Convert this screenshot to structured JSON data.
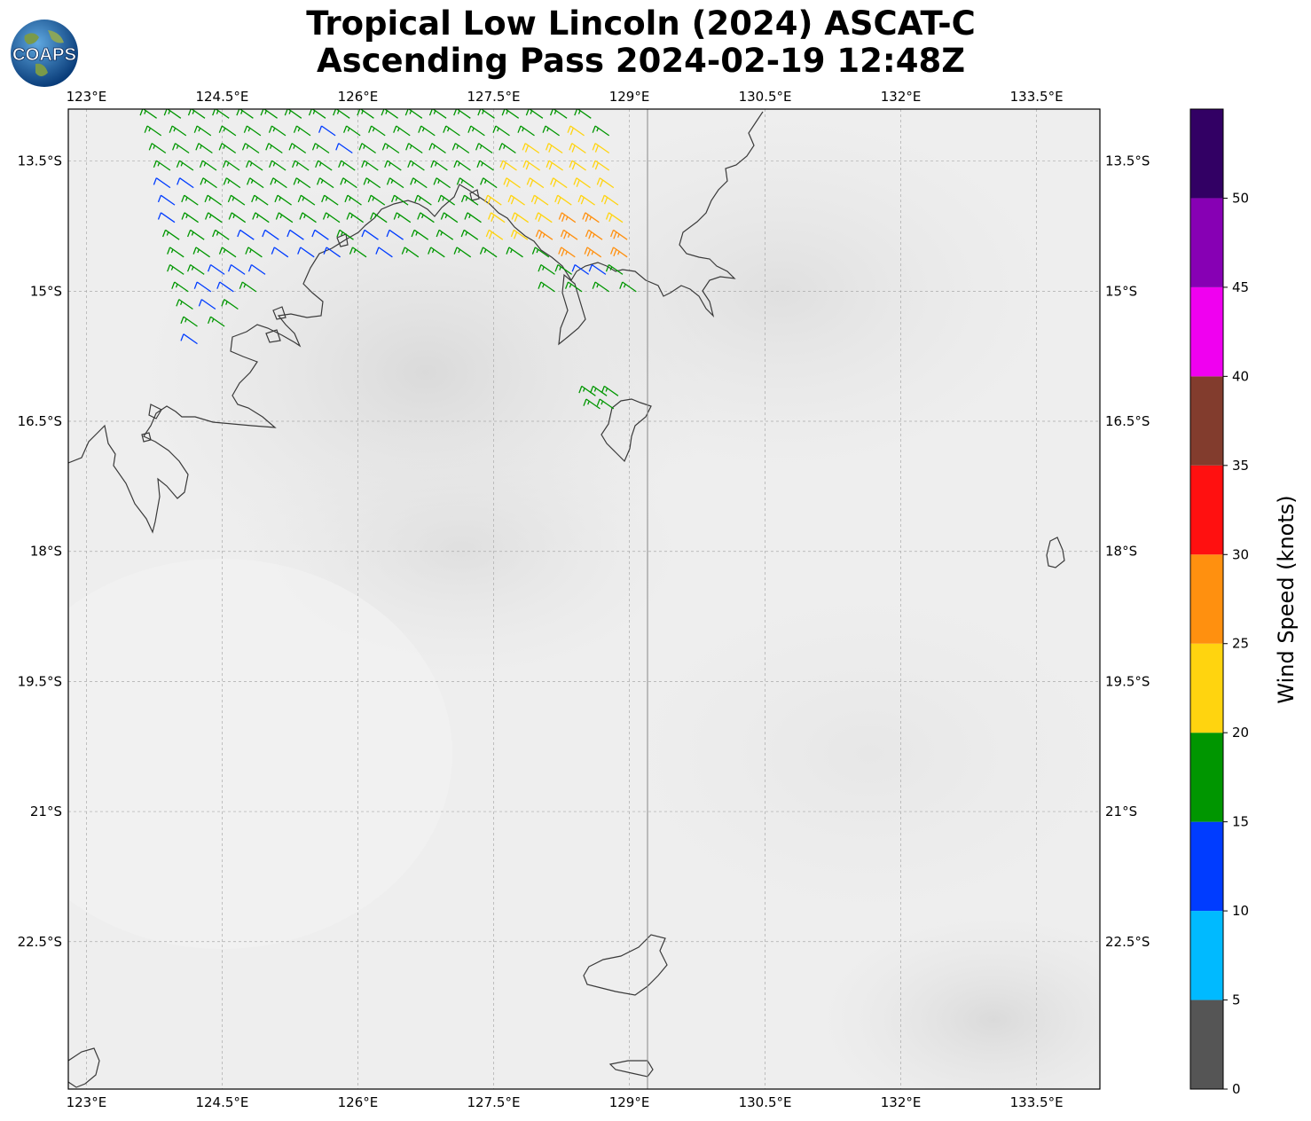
{
  "title": {
    "line1": "Tropical Low Lincoln (2024) ASCAT-C",
    "line2": "Ascending Pass 2024-02-19 12:48Z"
  },
  "logo": {
    "text": "COAPS",
    "icon": "earth-globe-icon"
  },
  "map": {
    "lon_range": [
      122.8,
      134.2
    ],
    "lat_range": [
      -24.2,
      -12.9
    ],
    "lon_ticks": [
      "123°E",
      "124.5°E",
      "126°E",
      "127.5°E",
      "129°E",
      "130.5°E",
      "132°E",
      "133.5°E"
    ],
    "lon_tick_values": [
      123,
      124.5,
      126,
      127.5,
      129,
      130.5,
      132,
      133.5
    ],
    "lat_ticks": [
      "13.5°S",
      "15°S",
      "16.5°S",
      "18°S",
      "19.5°S",
      "21°S",
      "22.5°S"
    ],
    "lat_tick_values": [
      -13.5,
      -15,
      -16.5,
      -18,
      -19.5,
      -21,
      -22.5
    ],
    "gridlines": true,
    "background": "grayscale infrared imagery",
    "coastline_color": "#333333"
  },
  "colorbar": {
    "label": "Wind Speed (knots)",
    "ticks": [
      "0",
      "5",
      "10",
      "15",
      "20",
      "25",
      "30",
      "35",
      "40",
      "45",
      "50"
    ],
    "bins": [
      {
        "from": 0,
        "to": 5,
        "color": "#555555"
      },
      {
        "from": 5,
        "to": 10,
        "color": "#00baff"
      },
      {
        "from": 10,
        "to": 15,
        "color": "#003cff"
      },
      {
        "from": 15,
        "to": 20,
        "color": "#009600"
      },
      {
        "from": 20,
        "to": 25,
        "color": "#ffd40f"
      },
      {
        "from": 25,
        "to": 30,
        "color": "#ff900f"
      },
      {
        "from": 30,
        "to": 35,
        "color": "#ff1010"
      },
      {
        "from": 35,
        "to": 40,
        "color": "#823c2d"
      },
      {
        "from": 40,
        "to": 45,
        "color": "#f000f0"
      },
      {
        "from": 45,
        "to": 50,
        "color": "#8700b4"
      },
      {
        "from": 50,
        "to": 55,
        "color": "#320064"
      }
    ]
  },
  "wind_barbs": {
    "direction_deg": 125,
    "rows": [
      {
        "lat": -12.95,
        "lon_start": 123.7,
        "lon_end": 128.5,
        "speeds": [
          17,
          17,
          17,
          17,
          17,
          17,
          17,
          17,
          17,
          17,
          17,
          17,
          17,
          17,
          17,
          17,
          17,
          17,
          17
        ]
      },
      {
        "lat": -13.15,
        "lon_start": 123.75,
        "lon_end": 128.7,
        "speeds": [
          17,
          17,
          17,
          17,
          17,
          17,
          17,
          12,
          17,
          17,
          17,
          17,
          17,
          17,
          17,
          17,
          18,
          22,
          17
        ]
      },
      {
        "lat": -13.35,
        "lon_start": 123.8,
        "lon_end": 128.7,
        "speeds": [
          17,
          17,
          17,
          17,
          17,
          17,
          17,
          17,
          12,
          17,
          17,
          17,
          17,
          17,
          17,
          17,
          22,
          22,
          22,
          22
        ]
      },
      {
        "lat": -13.55,
        "lon_start": 123.85,
        "lon_end": 128.7,
        "speeds": [
          17,
          17,
          17,
          17,
          17,
          17,
          17,
          17,
          17,
          17,
          17,
          17,
          17,
          17,
          17,
          22,
          22,
          22,
          22,
          22
        ]
      },
      {
        "lat": -13.75,
        "lon_start": 123.85,
        "lon_end": 128.75,
        "speeds": [
          12,
          12,
          17,
          17,
          17,
          17,
          17,
          17,
          17,
          17,
          17,
          17,
          17,
          17,
          17,
          22,
          22,
          22,
          22,
          22
        ]
      },
      {
        "lat": -13.95,
        "lon_start": 123.9,
        "lon_end": 128.8,
        "speeds": [
          12,
          17,
          17,
          17,
          17,
          17,
          17,
          17,
          17,
          17,
          17,
          17,
          17,
          17,
          22,
          22,
          22,
          22,
          22,
          22
        ]
      },
      {
        "lat": -14.15,
        "lon_start": 123.9,
        "lon_end": 128.85,
        "speeds": [
          12,
          17,
          17,
          17,
          17,
          17,
          17,
          17,
          17,
          17,
          17,
          17,
          17,
          17,
          22,
          22,
          22,
          26,
          26,
          22
        ]
      },
      {
        "lat": -14.35,
        "lon_start": 123.95,
        "lon_end": 128.9,
        "speeds": [
          17,
          17,
          17,
          12,
          12,
          12,
          12,
          17,
          12,
          12,
          17,
          17,
          17,
          22,
          22,
          26,
          26,
          26,
          26
        ]
      },
      {
        "lat": -14.55,
        "lon_start": 124.0,
        "lon_end": 128.9,
        "speeds": [
          17,
          17,
          17,
          17,
          12,
          12,
          12,
          17,
          12,
          17,
          17,
          17,
          17,
          17,
          17,
          26,
          26,
          26
        ]
      },
      {
        "lat": -14.75,
        "lon_start": 124.0,
        "lon_end": 124.9,
        "speeds": [
          17,
          17,
          12,
          12,
          12
        ]
      },
      {
        "lat": -14.95,
        "lon_start": 124.05,
        "lon_end": 124.8,
        "speeds": [
          17,
          12,
          12,
          17
        ]
      },
      {
        "lat": -15.15,
        "lon_start": 124.1,
        "lon_end": 124.6,
        "speeds": [
          17,
          12,
          17
        ]
      },
      {
        "lat": -15.35,
        "lon_start": 124.15,
        "lon_end": 124.45,
        "speeds": [
          17,
          17
        ]
      },
      {
        "lat": -15.55,
        "lon_start": 124.15,
        "lon_end": 124.3,
        "speeds": [
          12
        ]
      },
      {
        "lat": -14.75,
        "lon_start": 128.1,
        "lon_end": 128.85,
        "speeds": [
          17,
          17,
          12,
          12,
          17
        ]
      },
      {
        "lat": -14.95,
        "lon_start": 128.1,
        "lon_end": 129.0,
        "speeds": [
          17,
          17,
          17,
          17
        ]
      },
      {
        "lat": -16.15,
        "lon_start": 128.55,
        "lon_end": 128.8,
        "speeds": [
          17,
          17,
          17
        ]
      },
      {
        "lat": -16.3,
        "lon_start": 128.6,
        "lon_end": 128.75,
        "speeds": [
          17,
          17
        ]
      }
    ]
  }
}
